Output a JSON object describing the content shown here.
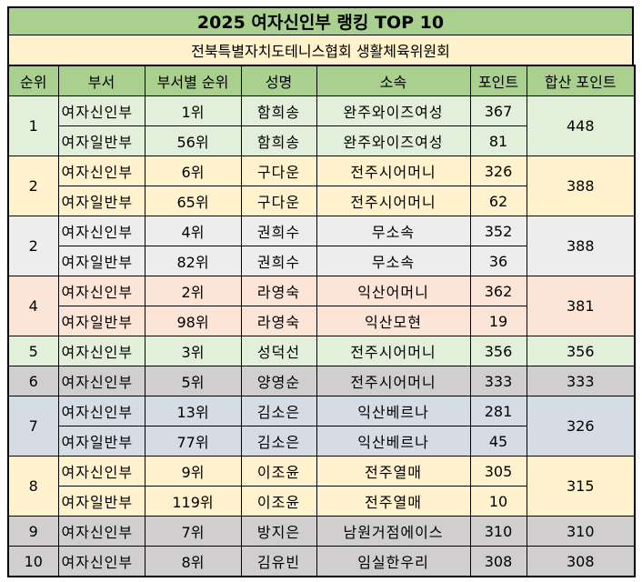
{
  "title": "2025 여자신인부 랭킹 TOP 10",
  "subtitle": "전북특별자치도테니스협회 생활체육위원회",
  "colors": {
    "header": "#A9D08E",
    "subtitle_bg": "#FFF2CC",
    "group_green": "#E2EFDA",
    "group_yellow": "#FFF2CC",
    "group_lightgray": "#EDEDED",
    "group_peach": "#FCE4D6",
    "group_darkgray": "#D0CECE",
    "group_bluegray": "#D6DCE4"
  },
  "columns": [
    "순위",
    "부서",
    "부서별 순위",
    "성명",
    "소속",
    "포인트",
    "합산 포인트"
  ],
  "groups": [
    {
      "rank": "1",
      "total": "448",
      "color": "#E2EFDA",
      "rows": [
        {
          "division": "여자신인부",
          "div_rank": "1위",
          "name": "함희송",
          "club": "완주와이즈여성",
          "points": "367"
        },
        {
          "division": "여자일반부",
          "div_rank": "56위",
          "name": "함희송",
          "club": "완주와이즈여성",
          "points": "81"
        }
      ]
    },
    {
      "rank": "2",
      "total": "388",
      "color": "#FFF2CC",
      "rows": [
        {
          "division": "여자신인부",
          "div_rank": "6위",
          "name": "구다운",
          "club": "전주시어머니",
          "points": "326"
        },
        {
          "division": "여자일반부",
          "div_rank": "65위",
          "name": "구다운",
          "club": "전주시어머니",
          "points": "62"
        }
      ]
    },
    {
      "rank": "2",
      "total": "388",
      "color": "#EDEDED",
      "rows": [
        {
          "division": "여자신인부",
          "div_rank": "4위",
          "name": "권희수",
          "club": "무소속",
          "points": "352"
        },
        {
          "division": "여자일반부",
          "div_rank": "82위",
          "name": "권희수",
          "club": "무소속",
          "points": "36"
        }
      ]
    },
    {
      "rank": "4",
      "total": "381",
      "color": "#FCE4D6",
      "rows": [
        {
          "division": "여자신인부",
          "div_rank": "2위",
          "name": "라영숙",
          "club": "익산어머니",
          "points": "362"
        },
        {
          "division": "여자일반부",
          "div_rank": "98위",
          "name": "라영숙",
          "club": "익산모현",
          "points": "19"
        }
      ]
    },
    {
      "rank": "5",
      "total": "356",
      "color": "#E2EFDA",
      "rows": [
        {
          "division": "여자신인부",
          "div_rank": "3위",
          "name": "성덕선",
          "club": "전주시어머니",
          "points": "356"
        }
      ]
    },
    {
      "rank": "6",
      "total": "333",
      "color": "#D0CECE",
      "rows": [
        {
          "division": "여자신인부",
          "div_rank": "5위",
          "name": "양영순",
          "club": "전주시어머니",
          "points": "333"
        }
      ]
    },
    {
      "rank": "7",
      "total": "326",
      "color": "#D6DCE4",
      "rows": [
        {
          "division": "여자신인부",
          "div_rank": "13위",
          "name": "김소은",
          "club": "익산베르나",
          "points": "281"
        },
        {
          "division": "여자일반부",
          "div_rank": "77위",
          "name": "김소은",
          "club": "익산베르나",
          "points": "45"
        }
      ]
    },
    {
      "rank": "8",
      "total": "315",
      "color": "#FFF2CC",
      "rows": [
        {
          "division": "여자신인부",
          "div_rank": "9위",
          "name": "이조윤",
          "club": "전주열매",
          "points": "305"
        },
        {
          "division": "여자일반부",
          "div_rank": "119위",
          "name": "이조윤",
          "club": "전주열매",
          "points": "10"
        }
      ]
    },
    {
      "rank": "9",
      "total": "310",
      "color": "#D0CECE",
      "rows": [
        {
          "division": "여자신인부",
          "div_rank": "7위",
          "name": "방지은",
          "club": "남원거점에이스",
          "points": "310"
        }
      ]
    },
    {
      "rank": "10",
      "total": "308",
      "color": "#D0CECE",
      "rows": [
        {
          "division": "여자신인부",
          "div_rank": "8위",
          "name": "김유빈",
          "club": "임실한우리",
          "points": "308"
        }
      ]
    }
  ]
}
